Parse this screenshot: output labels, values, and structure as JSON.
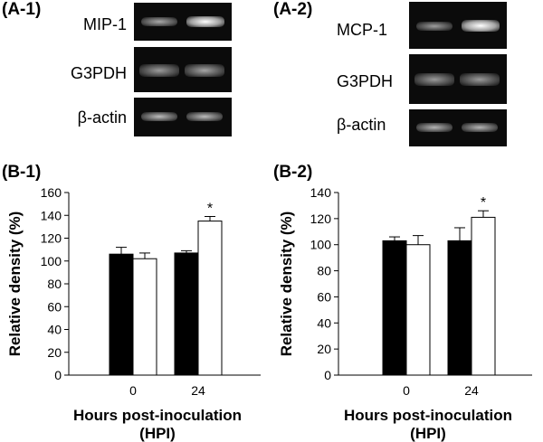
{
  "panels": {
    "a1": {
      "label": "(A-1)",
      "genes": [
        "MIP-1",
        "G3PDH",
        "β-actin"
      ]
    },
    "a2": {
      "label": "(A-2)",
      "genes": [
        "MCP-1",
        "G3PDH",
        "β-actin"
      ]
    },
    "b1": {
      "label": "(B-1)"
    },
    "b2": {
      "label": "(B-2)"
    }
  },
  "chart_data": [
    {
      "type": "bar",
      "panel": "(B-1)",
      "categories": [
        "0",
        "24"
      ],
      "series": [
        {
          "color": "#000000",
          "values": [
            106,
            107
          ],
          "errors": [
            6,
            2
          ]
        },
        {
          "color": "#ffffff",
          "values": [
            102,
            135
          ],
          "errors": [
            5,
            4
          ]
        }
      ],
      "significance": [
        {
          "category": "24",
          "label": "*"
        }
      ],
      "ylim": [
        0,
        160
      ],
      "yticks": [
        0,
        20,
        40,
        60,
        80,
        100,
        120,
        140,
        160
      ],
      "xlabel": "Hours post-inoculation\n(HPI)",
      "ylabel": "Relative density (%)"
    },
    {
      "type": "bar",
      "panel": "(B-2)",
      "categories": [
        "0",
        "24"
      ],
      "series": [
        {
          "color": "#000000",
          "values": [
            103,
            103
          ],
          "errors": [
            3,
            10
          ]
        },
        {
          "color": "#ffffff",
          "values": [
            100,
            121
          ],
          "errors": [
            7,
            5
          ]
        }
      ],
      "significance": [
        {
          "category": "24",
          "label": "*"
        }
      ],
      "ylim": [
        0,
        140
      ],
      "yticks": [
        0,
        20,
        40,
        60,
        80,
        100,
        120,
        140
      ],
      "xlabel": "Hours post-inoculation\n(HPI)",
      "ylabel": "Relative density (%)"
    }
  ]
}
